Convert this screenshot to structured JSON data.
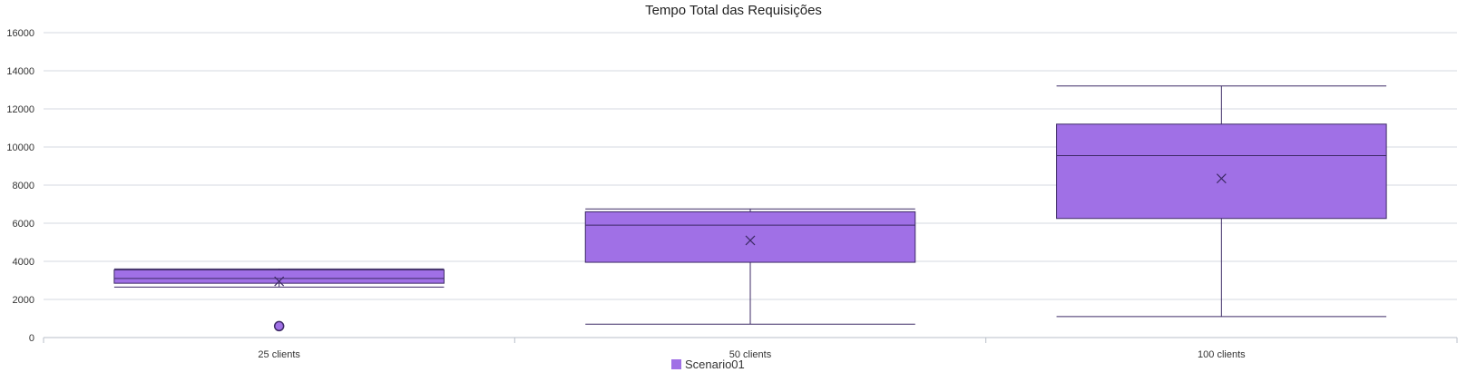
{
  "chart_data": {
    "type": "box",
    "title": "Tempo Total das Requisições",
    "xlabel": "",
    "ylabel": "",
    "ylim": [
      0,
      16000
    ],
    "yticks": [
      0,
      2000,
      4000,
      6000,
      8000,
      10000,
      12000,
      14000,
      16000
    ],
    "categories": [
      "25 clients",
      "50 clients",
      "100 clients"
    ],
    "grid": true,
    "legend_position": "bottom",
    "series": [
      {
        "name": "Scenario01",
        "color": "#a070e6",
        "stroke": "#3d2a66",
        "boxes": [
          {
            "category": "25 clients",
            "min": 2650,
            "q1": 2850,
            "median": 3100,
            "q3": 3550,
            "max": 3600,
            "mean": 2950,
            "outliers": [
              600
            ]
          },
          {
            "category": "50 clients",
            "min": 700,
            "q1": 3950,
            "median": 5900,
            "q3": 6600,
            "max": 6750,
            "mean": 5100,
            "outliers": []
          },
          {
            "category": "100 clients",
            "min": 1100,
            "q1": 6250,
            "median": 9550,
            "q3": 11200,
            "max": 13200,
            "mean": 8350,
            "outliers": []
          }
        ]
      }
    ]
  }
}
